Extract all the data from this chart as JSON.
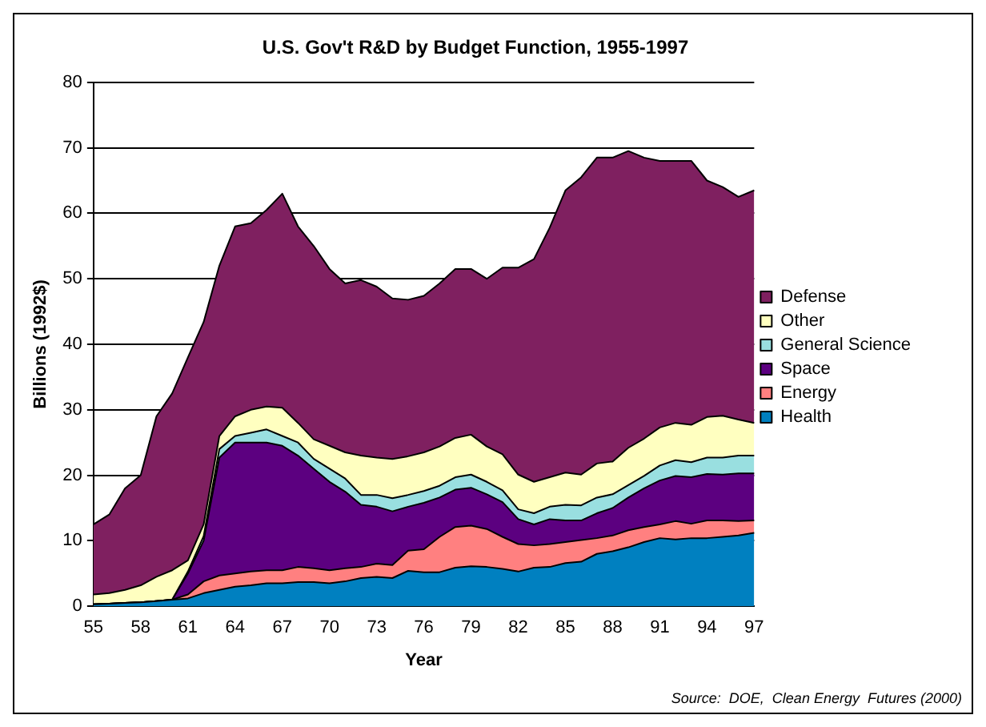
{
  "chart_data": {
    "type": "area",
    "title": "U.S. Gov't R&D by Budget Function, 1955-1997",
    "xlabel": "Year",
    "ylabel": "Billions (1992$)",
    "annotations": [
      "Source:  DOE,  Clean Energy  Futures (2000)"
    ],
    "categories": [
      "55",
      null,
      null,
      "58",
      null,
      null,
      "61",
      null,
      null,
      "64",
      null,
      null,
      "67",
      null,
      null,
      "70",
      null,
      null,
      "73",
      null,
      null,
      "76",
      null,
      null,
      "79",
      null,
      null,
      "82",
      null,
      null,
      "85",
      null,
      null,
      "88",
      null,
      null,
      "91",
      null,
      null,
      "94",
      null,
      null,
      "97"
    ],
    "stacked": true,
    "ylim": [
      0,
      80
    ],
    "yticks": [
      0,
      10,
      20,
      30,
      40,
      50,
      60,
      70,
      80
    ],
    "grid": "y",
    "legend": "right",
    "marker": "none",
    "series": [
      {
        "name": "Health",
        "color": "#0080c0",
        "values": [
          0.3,
          0.4,
          0.5,
          0.6,
          0.8,
          1.0,
          1.2,
          2,
          2.5,
          3,
          3.2,
          3.5,
          3.5,
          3.7,
          3.7,
          3.5,
          3.8,
          4.3,
          4.5,
          4.3,
          5.4,
          5.2,
          5.2,
          5.9,
          6.1,
          6.0,
          5.7,
          5.3,
          5.9,
          6.0,
          6.6,
          6.8,
          8.0,
          8.4,
          9.0,
          9.8,
          10.4,
          10.2,
          10.4,
          10.4,
          10.6,
          10.8,
          11.2
        ]
      },
      {
        "name": "Energy",
        "color": "#ff8080",
        "values": [
          0,
          0,
          0,
          0,
          0,
          0,
          0.6,
          1.8,
          2.2,
          2,
          2.1,
          2,
          2,
          2.3,
          2.1,
          2,
          2,
          1.7,
          2,
          2,
          3.1,
          3.5,
          5.4,
          6.2,
          6.2,
          5.8,
          4.9,
          4.2,
          3.4,
          3.5,
          3.2,
          3.3,
          2.4,
          2.4,
          2.6,
          2.3,
          2.1,
          2.8,
          2.2,
          2.7,
          2.5,
          2.2,
          1.9
        ]
      },
      {
        "name": "Space",
        "color": "#5c0080",
        "values": [
          0,
          0,
          0,
          0,
          0,
          0,
          3.2,
          6.2,
          18,
          20,
          19.7,
          19.5,
          19,
          17,
          15.2,
          13.5,
          11.7,
          9.5,
          8.7,
          8.2,
          6.7,
          7.1,
          6,
          5.7,
          5.8,
          5.3,
          5.3,
          3.8,
          3.2,
          3.8,
          3.3,
          3,
          3.8,
          4.2,
          5,
          5.9,
          6.7,
          6.9,
          7.1,
          7.1,
          7,
          7.3,
          7.2
        ]
      },
      {
        "name": "General Science",
        "color": "#99dfe0",
        "values": [
          0,
          0,
          0,
          0,
          0,
          0,
          0.3,
          0.7,
          1.3,
          1,
          1.5,
          2,
          1.5,
          2,
          1.5,
          2,
          2,
          1.5,
          1.8,
          2,
          1.8,
          1.8,
          1.8,
          1.9,
          2,
          1.9,
          1.8,
          1.5,
          1.7,
          1.9,
          2.4,
          2.3,
          2.4,
          2.1,
          1.9,
          1.9,
          2.3,
          2.4,
          2.3,
          2.5,
          2.6,
          2.7,
          2.7
        ]
      },
      {
        "name": "Other",
        "color": "#ffffc0",
        "values": [
          1.5,
          1.6,
          2,
          2.6,
          3.7,
          4.5,
          1.7,
          1.8,
          2,
          3,
          3.5,
          3.5,
          4.3,
          3,
          3,
          3.5,
          4,
          6,
          5.7,
          6,
          5.9,
          5.9,
          6,
          6,
          6.1,
          5.4,
          5.5,
          5.3,
          4.8,
          4.5,
          4.9,
          4.7,
          5.2,
          5,
          5.7,
          5.7,
          5.8,
          5.7,
          5.7,
          6.2,
          6.4,
          5.5,
          5
        ]
      },
      {
        "name": "Defense",
        "color": "#7f2060",
        "values": [
          10.7,
          12,
          15.5,
          16.8,
          24.5,
          27,
          31,
          30.9,
          26,
          29,
          28.5,
          30,
          32.7,
          30,
          29.5,
          27,
          25.8,
          26.8,
          26.1,
          24.5,
          23.9,
          23.9,
          24.9,
          25.8,
          25.3,
          25.6,
          28.5,
          31.6,
          34,
          38.1,
          43.1,
          45.4,
          46.7,
          46.4,
          45.3,
          42.9,
          40.7,
          40,
          40.3,
          36.1,
          34.9,
          34,
          35.5
        ]
      }
    ]
  }
}
